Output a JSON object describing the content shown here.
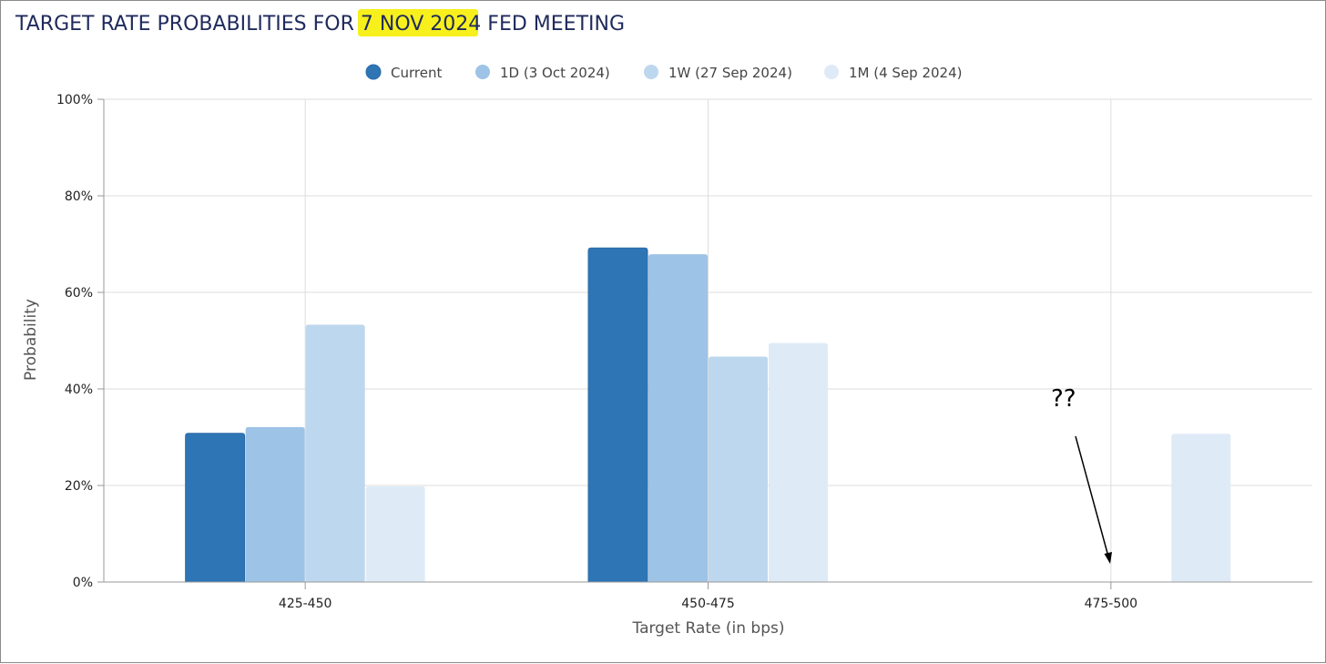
{
  "chart_data": {
    "type": "bar",
    "title_prefix": "TARGET RATE PROBABILITIES FOR ",
    "title_highlight": "7 NOV 2024",
    "title_suffix": " FED MEETING",
    "title_highlight_color": "#f7f01c",
    "xlabel": "Target Rate (in bps)",
    "ylabel": "Probability",
    "categories": [
      "425-450",
      "450-475",
      "475-500"
    ],
    "ylim": [
      0,
      100
    ],
    "yticks": [
      "0%",
      "20%",
      "40%",
      "60%",
      "80%",
      "100%"
    ],
    "grid": true,
    "legend_position": "top-center",
    "series": [
      {
        "name": "Current",
        "color": "#2e75b6",
        "values": [
          30.8,
          69.2,
          0
        ]
      },
      {
        "name": "1D (3 Oct 2024)",
        "color": "#9dc3e6",
        "values": [
          32.1,
          67.9,
          0
        ]
      },
      {
        "name": "1W (27 Sep 2024)",
        "color": "#bdd7ee",
        "values": [
          53.3,
          46.7,
          0
        ]
      },
      {
        "name": "1M (4 Sep 2024)",
        "color": "#deebf7",
        "values": [
          19.8,
          49.5,
          30.7
        ]
      }
    ],
    "annotation": {
      "text": "??",
      "category": "475-500"
    }
  }
}
